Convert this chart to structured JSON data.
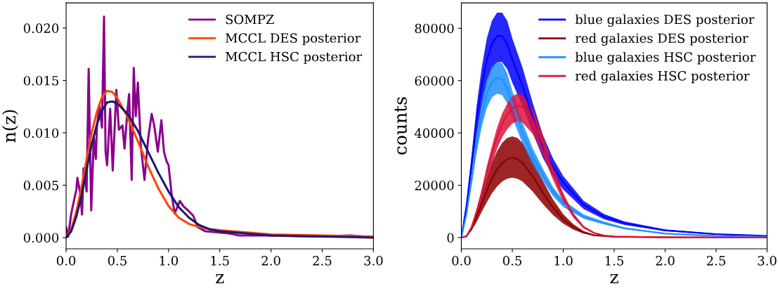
{
  "chart_data": [
    {
      "type": "line",
      "xlabel": "z",
      "ylabel": "n(z)",
      "xlim": [
        0,
        3
      ],
      "ylim": [
        -0.00107,
        0.0224
      ],
      "xticks": [
        {
          "value": 0,
          "label": "0.0"
        },
        {
          "value": 0.5,
          "label": "0.5"
        },
        {
          "value": 1,
          "label": "1.0"
        },
        {
          "value": 1.5,
          "label": "1.5"
        },
        {
          "value": 2,
          "label": "2.0"
        },
        {
          "value": 2.5,
          "label": "2.5"
        },
        {
          "value": 3,
          "label": "3.0"
        }
      ],
      "yticks": [
        {
          "value": 0,
          "label": "0.000"
        },
        {
          "value": 0.005,
          "label": "0.005"
        },
        {
          "value": 0.01,
          "label": "0.010"
        },
        {
          "value": 0.015,
          "label": "0.015"
        },
        {
          "value": 0.02,
          "label": "0.020"
        }
      ],
      "legend": "top right",
      "grid": false,
      "series": [
        {
          "name": "SOMPZ",
          "color": "#8b008b",
          "x": [
            0,
            0.02,
            0.05,
            0.1,
            0.11,
            0.14,
            0.155,
            0.17,
            0.2,
            0.22,
            0.245,
            0.27,
            0.29,
            0.3,
            0.325,
            0.35,
            0.37,
            0.385,
            0.4,
            0.43,
            0.455,
            0.49,
            0.515,
            0.55,
            0.57,
            0.6,
            0.615,
            0.64,
            0.66,
            0.68,
            0.7,
            0.73,
            0.765,
            0.8,
            0.835,
            0.86,
            0.895,
            0.93,
            0.955,
            0.98,
            1.0,
            1.03,
            1.06,
            1.11,
            1.145,
            1.19,
            1.24,
            1.285,
            1.36,
            1.59,
            1.69,
            1.95,
            2.42,
            2.78,
            3.0
          ],
          "values": [
            0.001,
            0.0001,
            0.0023,
            0.0046,
            0.0057,
            0.0041,
            0.0022,
            0.0066,
            0.0044,
            0.0161,
            0.0026,
            0.0096,
            0.0075,
            0.0105,
            0.0127,
            0.0105,
            0.0211,
            0.0082,
            0.0069,
            0.0123,
            0.0064,
            0.0141,
            0.0103,
            0.0107,
            0.0085,
            0.0123,
            0.0137,
            0.0055,
            0.0162,
            0.0116,
            0.0148,
            0.0087,
            0.0055,
            0.0094,
            0.0118,
            0.0107,
            0.0082,
            0.0112,
            0.0082,
            0.0073,
            0.0069,
            0.0041,
            0.0023,
            0.0035,
            0.003,
            0.0026,
            0.0021,
            0.001,
            0.0006,
            0.0004,
            0.0002,
            0.0002,
            0.0001,
            0.0002,
            0.0
          ]
        },
        {
          "name": "MCCL DES posterior",
          "color": "#ff4500",
          "x": [
            0,
            0.05,
            0.1,
            0.15,
            0.2,
            0.25,
            0.3,
            0.35,
            0.4,
            0.45,
            0.5,
            0.6,
            0.7,
            0.8,
            0.9,
            1.0,
            1.1,
            1.2,
            1.3,
            1.4,
            1.5,
            1.75,
            2.0,
            2.5,
            3.0
          ],
          "values": [
            0,
            0.0008,
            0.0025,
            0.0048,
            0.0075,
            0.01,
            0.012,
            0.0134,
            0.014,
            0.0139,
            0.0133,
            0.0115,
            0.0092,
            0.0068,
            0.0047,
            0.003,
            0.0019,
            0.0013,
            0.001,
            0.0008,
            0.0007,
            0.0005,
            0.0003,
            0.0002,
            0.0001
          ]
        },
        {
          "name": "MCCL HSC posterior",
          "color": "#191970",
          "x": [
            0,
            0.05,
            0.1,
            0.15,
            0.2,
            0.25,
            0.3,
            0.35,
            0.4,
            0.45,
            0.5,
            0.6,
            0.7,
            0.8,
            0.9,
            1.0,
            1.1,
            1.2,
            1.3,
            1.4,
            1.5,
            1.75,
            2.0,
            2.5,
            3.0
          ],
          "values": [
            0,
            0.0006,
            0.002,
            0.004,
            0.0065,
            0.0089,
            0.0108,
            0.0121,
            0.0129,
            0.013,
            0.0128,
            0.0118,
            0.0102,
            0.0082,
            0.0062,
            0.0044,
            0.0029,
            0.0019,
            0.0012,
            0.0008,
            0.0006,
            0.0004,
            0.0002,
            0.0001,
            0.0
          ]
        }
      ]
    },
    {
      "type": "line",
      "xlabel": "z",
      "ylabel": "counts",
      "xlim": [
        0,
        3
      ],
      "ylim": [
        -4300,
        89700
      ],
      "xticks": [
        {
          "value": 0,
          "label": "0.0"
        },
        {
          "value": 0.5,
          "label": "0.5"
        },
        {
          "value": 1,
          "label": "1.0"
        },
        {
          "value": 1.5,
          "label": "1.5"
        },
        {
          "value": 2,
          "label": "2.0"
        },
        {
          "value": 2.5,
          "label": "2.5"
        },
        {
          "value": 3,
          "label": "3.0"
        }
      ],
      "yticks": [
        0,
        20000,
        40000,
        60000,
        80000
      ],
      "legend": "top right",
      "grid": false,
      "series": [
        {
          "name": "blue galaxies DES posterior",
          "color": "#0000ff",
          "x": [
            0,
            0.05,
            0.1,
            0.15,
            0.2,
            0.25,
            0.3,
            0.35,
            0.4,
            0.45,
            0.5,
            0.6,
            0.7,
            0.8,
            0.9,
            1.0,
            1.2,
            1.4,
            1.6,
            2.0,
            2.5,
            3.0
          ],
          "values": [
            0,
            12000,
            28000,
            45000,
            58000,
            68000,
            74000,
            77000,
            77000,
            74000,
            68000,
            58000,
            46000,
            35000,
            27000,
            21000,
            12500,
            8000,
            5500,
            2800,
            1300,
            600
          ],
          "lower": [
            0,
            10400,
            24400,
            39200,
            50500,
            59200,
            64400,
            67000,
            67000,
            64400,
            59200,
            50500,
            40000,
            30500,
            23500,
            18300,
            10900,
            7000,
            4800,
            2400,
            1100,
            500
          ],
          "upper": [
            0,
            13400,
            31400,
            50400,
            65000,
            76200,
            82900,
            86000,
            86000,
            82900,
            76200,
            65000,
            51500,
            39200,
            30200,
            23500,
            14000,
            9000,
            6200,
            3100,
            1500,
            700
          ]
        },
        {
          "name": "red galaxies DES posterior",
          "color": "#8b0000",
          "x": [
            0,
            0.05,
            0.1,
            0.15,
            0.2,
            0.25,
            0.3,
            0.35,
            0.4,
            0.45,
            0.5,
            0.55,
            0.6,
            0.7,
            0.8,
            0.9,
            1.0,
            1.1,
            1.2,
            1.3,
            1.5,
            2.0,
            3.0
          ],
          "values": [
            0,
            500,
            3500,
            8000,
            13000,
            18000,
            22500,
            26000,
            28500,
            30000,
            30500,
            30000,
            28500,
            23500,
            17000,
            11500,
            7000,
            4000,
            2000,
            900,
            300,
            100,
            0
          ],
          "lower": [
            0,
            400,
            2600,
            6000,
            9800,
            13500,
            16900,
            19500,
            21400,
            22500,
            22900,
            22500,
            21400,
            17600,
            12800,
            8600,
            5300,
            3000,
            1500,
            700,
            200,
            100,
            0
          ],
          "upper": [
            0,
            600,
            4400,
            10200,
            16500,
            22900,
            28600,
            33000,
            36200,
            38100,
            38700,
            38100,
            36200,
            29800,
            21600,
            14600,
            8900,
            5100,
            2500,
            1100,
            400,
            100,
            0
          ]
        },
        {
          "name": "blue galaxies HSC posterior",
          "color": "#1e90ff",
          "x": [
            0,
            0.05,
            0.1,
            0.15,
            0.2,
            0.25,
            0.3,
            0.35,
            0.4,
            0.45,
            0.5,
            0.6,
            0.7,
            0.8,
            0.9,
            1.0,
            1.2,
            1.4,
            1.6,
            2.0,
            2.5,
            3.0
          ],
          "values": [
            0,
            9000,
            22000,
            36000,
            47000,
            55000,
            59500,
            61000,
            60500,
            57000,
            51000,
            40000,
            31000,
            24000,
            17500,
            13000,
            8000,
            5500,
            3500,
            1500,
            600,
            300
          ],
          "lower": [
            0,
            8100,
            19800,
            32400,
            42300,
            49500,
            53600,
            55000,
            54500,
            51300,
            45900,
            36000,
            27900,
            21600,
            15800,
            11700,
            7200,
            5000,
            3200,
            1400,
            500,
            300
          ],
          "upper": [
            0,
            9900,
            24200,
            39600,
            51700,
            60500,
            65500,
            67000,
            66600,
            62700,
            56100,
            44000,
            34100,
            26400,
            19300,
            14300,
            8800,
            6100,
            3900,
            1700,
            700,
            300
          ]
        },
        {
          "name": "red galaxies HSC posterior",
          "color": "#dc143c",
          "x": [
            0,
            0.05,
            0.1,
            0.15,
            0.2,
            0.25,
            0.3,
            0.35,
            0.4,
            0.45,
            0.5,
            0.55,
            0.6,
            0.7,
            0.8,
            0.9,
            1.0,
            1.1,
            1.2,
            1.3,
            1.4,
            1.5,
            2.0,
            3.0
          ],
          "values": [
            0,
            500,
            4000,
            10000,
            17000,
            25000,
            32000,
            38500,
            43500,
            47000,
            49500,
            50500,
            50000,
            45000,
            36000,
            25000,
            15500,
            8500,
            4000,
            1800,
            800,
            400,
            100,
            0
          ],
          "lower": [
            0,
            400,
            3500,
            8800,
            15000,
            22000,
            28200,
            33900,
            38300,
            41400,
            43600,
            44400,
            44000,
            39600,
            31700,
            22000,
            13600,
            7500,
            3500,
            1600,
            700,
            400,
            100,
            0
          ],
          "upper": [
            0,
            500,
            4400,
            10900,
            18500,
            27300,
            34900,
            42000,
            47400,
            51200,
            54000,
            55000,
            54500,
            49100,
            39200,
            27300,
            16900,
            9300,
            4400,
            2000,
            900,
            400,
            100,
            0
          ]
        }
      ]
    }
  ]
}
